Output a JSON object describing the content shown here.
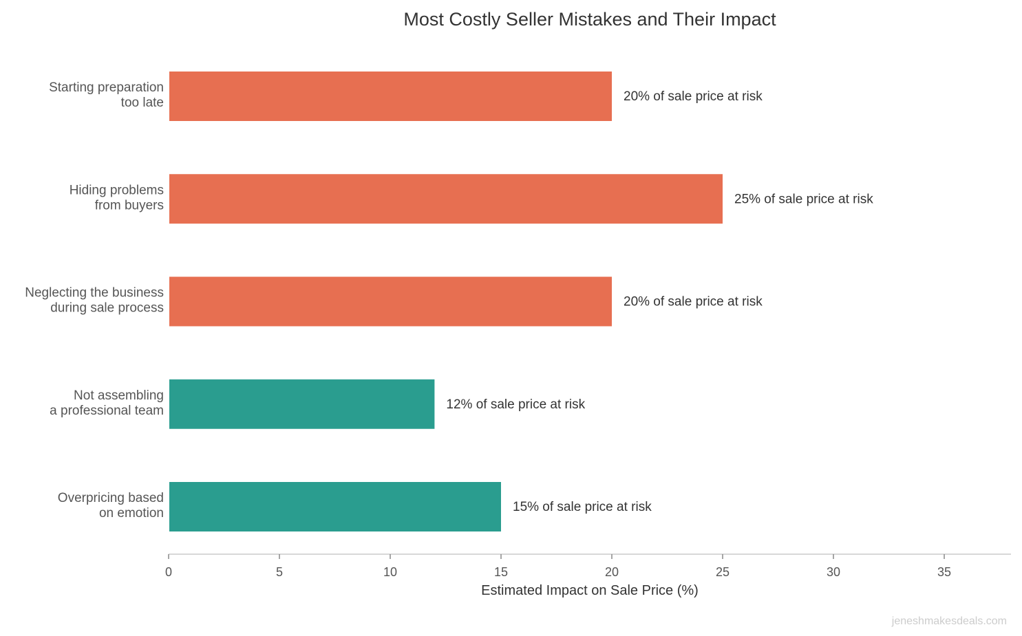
{
  "chart_data": {
    "type": "bar",
    "orientation": "horizontal",
    "title": "Most Costly Seller Mistakes and Their Impact",
    "xlabel": "Estimated Impact on Sale Price (%)",
    "ylabel": "",
    "xlim": [
      0,
      38
    ],
    "xticks": [
      0,
      5,
      10,
      15,
      20,
      25,
      30,
      35
    ],
    "grid": false,
    "categories": [
      [
        "Starting preparation",
        "too late"
      ],
      [
        "Hiding problems",
        "from buyers"
      ],
      [
        "Neglecting the business",
        "during sale process"
      ],
      [
        "Not assembling",
        "a professional team"
      ],
      [
        "Overpricing based",
        "on emotion"
      ]
    ],
    "values": [
      20,
      25,
      20,
      12,
      15
    ],
    "data_labels": [
      "20% of sale price at risk",
      "25% of sale price at risk",
      "20% of sale price at risk",
      "12% of sale price at risk",
      "15% of sale price at risk"
    ],
    "bar_colors": [
      "#E76F51",
      "#E76F51",
      "#E76F51",
      "#2A9D8F",
      "#2A9D8F"
    ]
  },
  "watermark": "jeneshmakesdeals.com"
}
